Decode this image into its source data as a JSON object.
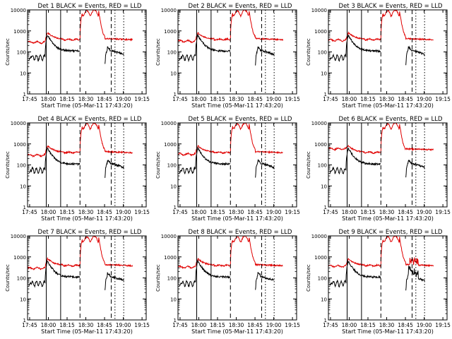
{
  "chart_data": {
    "type": "line",
    "x_ticks": [
      "17:45",
      "18:00",
      "18:15",
      "18:30",
      "18:45",
      "19:00",
      "19:15"
    ],
    "x_range_minutes": [
      0,
      95
    ],
    "xlabel": "Start Time (05-Mar-11 17:43:20)",
    "ylabel": "Counts/sec",
    "y_scale": "log",
    "y_ticks": [
      "1",
      "10",
      "100",
      "1000",
      "10000"
    ],
    "y_range": [
      1,
      10000
    ],
    "series_colors": {
      "events": "#000000",
      "lld": "#e00000"
    },
    "markers": [
      {
        "t": 15,
        "style": "solid"
      },
      {
        "t": 26.5,
        "style": "solid"
      },
      {
        "t": 42,
        "style": "dashed"
      },
      {
        "t": 67,
        "style": "dashed"
      },
      {
        "t": 70,
        "style": "dotted"
      },
      {
        "t": 77,
        "style": "dotted"
      }
    ],
    "panels": [
      {
        "title": "Det  1  BLACK = Events, RED = LLD",
        "variant": 0
      },
      {
        "title": "Det  2  BLACK = Events, RED = LLD",
        "variant": 1
      },
      {
        "title": "Det  3  BLACK = Events, RED = LLD",
        "variant": 2
      },
      {
        "title": "Det  4  BLACK = Events, RED = LLD",
        "variant": 3
      },
      {
        "title": "Det  5  BLACK = Events, RED = LLD",
        "variant": 4
      },
      {
        "title": "Det  6  BLACK = Events, RED = LLD",
        "variant": 5
      },
      {
        "title": "Det  7  BLACK = Events, RED = LLD",
        "variant": 6
      },
      {
        "title": "Det  8  BLACK = Events, RED = LLD",
        "variant": 7
      },
      {
        "title": "Det  9  BLACK = Events, RED = LLD",
        "variant": 8
      }
    ]
  }
}
